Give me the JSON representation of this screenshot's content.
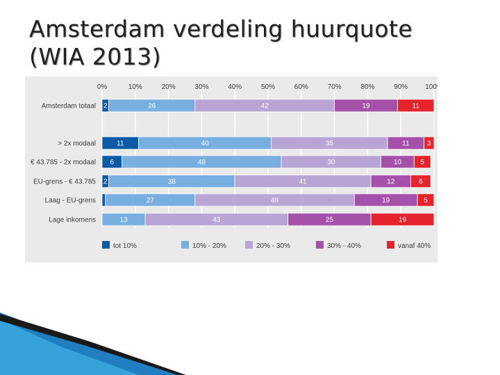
{
  "slide": {
    "title": "Amsterdam verdeling huurquote\n(WIA 2013)"
  },
  "colors": {
    "panel_bg": "#eaeaea",
    "grid": "#ffffff",
    "text": "#3a3a3a"
  },
  "chart_data": {
    "type": "bar",
    "orientation": "horizontal",
    "stacked": true,
    "xlim": [
      0,
      100
    ],
    "x_ticks": [
      "0%",
      "10%",
      "20%",
      "30%",
      "40%",
      "50%",
      "60%",
      "70%",
      "80%",
      "90%",
      "100%"
    ],
    "categories": [
      "Amsterdam totaal",
      "> 2x modaal",
      "€ 43.785 - 2x modaal",
      "EU-grens - € 43.785",
      "Laag - EU-grens",
      "Lage inkomens"
    ],
    "gap_after_first": true,
    "legend_position": "bottom",
    "series": [
      {
        "name": "tot 10%",
        "color": "#0c5aa6",
        "label_color": "#ffffff",
        "values": [
          2,
          11,
          6,
          2,
          1,
          0
        ]
      },
      {
        "name": "10% -  20%",
        "color": "#79aee0",
        "label_color": "#ffffff",
        "values": [
          26,
          40,
          48,
          38,
          27,
          13
        ]
      },
      {
        "name": "20% - 30%",
        "color": "#b9a4d6",
        "label_color": "#ffffff",
        "values": [
          42,
          35,
          30,
          41,
          48,
          43
        ]
      },
      {
        "name": "30% - 40%",
        "color": "#a651a9",
        "label_color": "#ffffff",
        "values": [
          19,
          11,
          10,
          12,
          19,
          25
        ]
      },
      {
        "name": "vanaf 40%",
        "color": "#e4232d",
        "label_color": "#ffffff",
        "values": [
          11,
          3,
          5,
          6,
          5,
          19
        ]
      }
    ],
    "hidden_labels": [
      [
        4,
        0
      ]
    ]
  }
}
